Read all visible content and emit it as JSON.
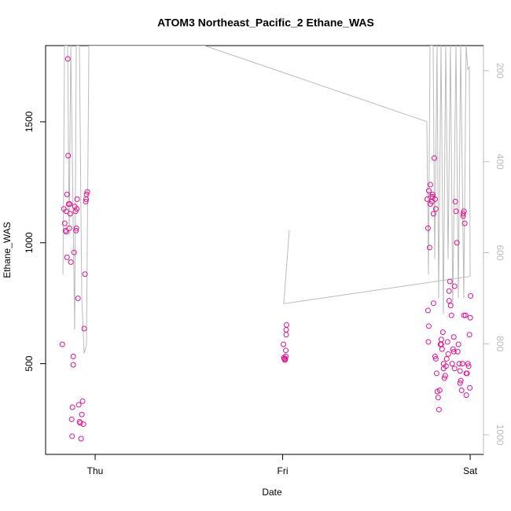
{
  "chart_data": {
    "type": "scatter",
    "title": "ATOM3 Northeast_Pacific_2 Ethane_WAS",
    "x_label": "Date",
    "y_label": "Ethane_WAS",
    "xlim": [
      -6.34,
      49.7
    ],
    "xticks": [
      {
        "value": 0,
        "label": "Thu"
      },
      {
        "value": 24,
        "label": "Fri"
      },
      {
        "value": 48,
        "label": "Sat"
      }
    ],
    "ylim": [
      125,
      1815
    ],
    "yticks": [
      500,
      1000,
      1500
    ],
    "y2lim": [
      1043,
      145
    ],
    "y2ticks": [
      200,
      400,
      600,
      800,
      1000
    ],
    "series": [
      {
        "type": "scatter",
        "color": "#e0138c",
        "x": [
          -4.2,
          -4.0,
          -3.9,
          -3.8,
          -3.7,
          -3.6,
          -3.5,
          -3.45,
          -3.4,
          -3.3,
          -3.2,
          -3.1,
          -3.0,
          -2.95,
          -2.9,
          -2.8,
          -2.8,
          -2.7,
          -2.6,
          -2.5,
          -2.4,
          -2.3,
          -2.2,
          -2.1,
          -2.0,
          -1.9,
          -1.8,
          -1.7,
          -1.6,
          -1.5,
          -1.4,
          -1.3,
          -1.2,
          -1.1,
          -1.0,
          -3.6,
          -3.7,
          -3.25,
          -2.45,
          -2.35,
          -1.15,
          24.1,
          24.15,
          24.2,
          24.3,
          24.4,
          24.4,
          24.45,
          24.5,
          24.45,
          24.35,
          42.5,
          42.6,
          42.7,
          42.8,
          42.9,
          43.0,
          43.1,
          43.2,
          43.3,
          43.4,
          43.5,
          43.6,
          42.6,
          42.7,
          42.65,
          43.3,
          43.5,
          43.6,
          43.7,
          43.8,
          43.9,
          44.0,
          44.1,
          44.2,
          44.3,
          44.4,
          44.5,
          44.6,
          44.7,
          44.8,
          44.9,
          45.0,
          45.1,
          45.2,
          45.3,
          45.4,
          45.5,
          45.6,
          45.7,
          45.8,
          45.9,
          46.0,
          46.1,
          46.2,
          46.3,
          46.4,
          46.5,
          46.6,
          46.7,
          46.8,
          46.9,
          47.0,
          47.1,
          47.2,
          47.3,
          47.4,
          47.5,
          47.6,
          47.7,
          47.8,
          47.9,
          48.0,
          48.05,
          47.95,
          47.5,
          46.0,
          45.3,
          44.3,
          44.6,
          43.2,
          42.9,
          47.1,
          45.9,
          46.7,
          47.2
        ],
        "values": [
          580,
          1140,
          1080,
          1050,
          1130,
          1200,
          1760,
          1360,
          1160,
          1060,
          1120,
          920,
          270,
          200,
          320,
          530,
          495,
          960,
          1150,
          1130,
          1060,
          1180,
          770,
          330,
          260,
          255,
          190,
          290,
          345,
          250,
          645,
          870,
          1170,
          1200,
          1210,
          940,
          1045,
          1160,
          1050,
          1140,
          1180,
          580,
          525,
          520,
          515,
          530,
          555,
          640,
          660,
          620,
          520,
          1180,
          1060,
          1215,
          980,
          1240,
          1190,
          1170,
          1200,
          1120,
          1350,
          1180,
          1140,
          720,
          655,
          590,
          750,
          530,
          520,
          460,
          385,
          360,
          310,
          390,
          580,
          600,
          560,
          630,
          500,
          440,
          450,
          490,
          520,
          590,
          540,
          800,
          840,
          740,
          700,
          500,
          560,
          610,
          480,
          1170,
          1130,
          1000,
          550,
          580,
          500,
          470,
          430,
          390,
          500,
          1110,
          1130,
          1080,
          700,
          460,
          460,
          500,
          490,
          620,
          690,
          780,
          400,
          370,
          820,
          760,
          580,
          480,
          1190,
          1160,
          1120,
          550,
          420,
          700
        ]
      },
      {
        "type": "line",
        "color": "#bbbbbb",
        "axis": "y2",
        "x": [
          -4.12,
          -3.92,
          -3.52,
          -3.32,
          -3.12,
          -2.62,
          -2.41,
          -2.01,
          -1.71,
          -1.41,
          -1.11,
          -0.8,
          -0.4,
          13.98,
          42.45,
          42.66,
          42.86,
          43.26,
          43.46,
          43.76,
          43.96,
          44.27,
          44.57,
          44.87,
          45.17,
          45.47,
          45.77,
          46.18,
          46.48,
          46.78,
          47.18,
          47.48,
          47.69,
          47.89,
          47.99,
          24.14,
          24.85
        ],
        "values": [
          648,
          145,
          145,
          562,
          145,
          769,
          145,
          145,
          700,
          821,
          804,
          145,
          145,
          145,
          312,
          648,
          145,
          145,
          614,
          145,
          700,
          145,
          735,
          145,
          614,
          145,
          717,
          145,
          700,
          145,
          700,
          145,
          197,
          192,
          652,
          712,
          550
        ]
      }
    ]
  }
}
